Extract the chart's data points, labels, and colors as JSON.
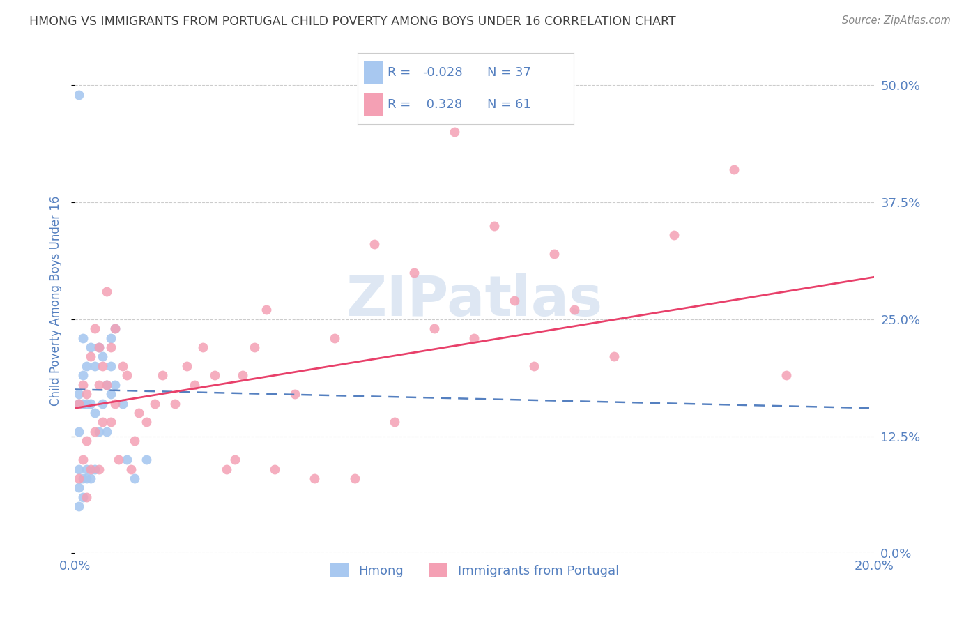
{
  "title": "HMONG VS IMMIGRANTS FROM PORTUGAL CHILD POVERTY AMONG BOYS UNDER 16 CORRELATION CHART",
  "source": "Source: ZipAtlas.com",
  "ylabel": "Child Poverty Among Boys Under 16",
  "xlim": [
    0.0,
    0.2
  ],
  "ylim": [
    0.0,
    0.54
  ],
  "yticks": [
    0.0,
    0.125,
    0.25,
    0.375,
    0.5
  ],
  "yticklabels": [
    "0.0%",
    "12.5%",
    "25.0%",
    "37.5%",
    "50.0%"
  ],
  "xticks": [
    0.0,
    0.04,
    0.08,
    0.12,
    0.16,
    0.2
  ],
  "xticklabels": [
    "0.0%",
    "",
    "",
    "",
    "",
    "20.0%"
  ],
  "hmong_color": "#A8C8F0",
  "portugal_color": "#F4A0B4",
  "hmong_line_color": "#5580C0",
  "portugal_line_color": "#E8406A",
  "background_color": "#FFFFFF",
  "grid_color": "#CCCCCC",
  "title_color": "#404040",
  "axis_label_color": "#5580C0",
  "watermark": "ZIPatlas",
  "hmong_x": [
    0.001,
    0.001,
    0.001,
    0.001,
    0.001,
    0.001,
    0.001,
    0.002,
    0.002,
    0.002,
    0.002,
    0.002,
    0.003,
    0.003,
    0.003,
    0.003,
    0.004,
    0.004,
    0.004,
    0.005,
    0.005,
    0.005,
    0.006,
    0.006,
    0.007,
    0.007,
    0.008,
    0.008,
    0.009,
    0.009,
    0.009,
    0.01,
    0.01,
    0.012,
    0.013,
    0.015,
    0.018
  ],
  "hmong_y": [
    0.05,
    0.07,
    0.09,
    0.13,
    0.16,
    0.17,
    0.49,
    0.06,
    0.08,
    0.16,
    0.19,
    0.23,
    0.08,
    0.09,
    0.16,
    0.2,
    0.08,
    0.16,
    0.22,
    0.09,
    0.15,
    0.2,
    0.13,
    0.22,
    0.16,
    0.21,
    0.13,
    0.18,
    0.17,
    0.2,
    0.23,
    0.18,
    0.24,
    0.16,
    0.1,
    0.08,
    0.1
  ],
  "portugal_x": [
    0.001,
    0.001,
    0.002,
    0.002,
    0.003,
    0.003,
    0.003,
    0.004,
    0.004,
    0.005,
    0.005,
    0.006,
    0.006,
    0.006,
    0.007,
    0.007,
    0.008,
    0.008,
    0.009,
    0.009,
    0.01,
    0.01,
    0.011,
    0.012,
    0.013,
    0.014,
    0.015,
    0.016,
    0.018,
    0.02,
    0.022,
    0.025,
    0.028,
    0.032,
    0.035,
    0.04,
    0.045,
    0.05,
    0.055,
    0.06,
    0.07,
    0.08,
    0.09,
    0.1,
    0.11,
    0.12,
    0.03,
    0.038,
    0.042,
    0.048,
    0.065,
    0.075,
    0.085,
    0.095,
    0.105,
    0.115,
    0.125,
    0.135,
    0.15,
    0.165,
    0.178
  ],
  "portugal_y": [
    0.08,
    0.16,
    0.1,
    0.18,
    0.06,
    0.12,
    0.17,
    0.09,
    0.21,
    0.13,
    0.24,
    0.09,
    0.18,
    0.22,
    0.14,
    0.2,
    0.18,
    0.28,
    0.14,
    0.22,
    0.16,
    0.24,
    0.1,
    0.2,
    0.19,
    0.09,
    0.12,
    0.15,
    0.14,
    0.16,
    0.19,
    0.16,
    0.2,
    0.22,
    0.19,
    0.1,
    0.22,
    0.09,
    0.17,
    0.08,
    0.08,
    0.14,
    0.24,
    0.23,
    0.27,
    0.32,
    0.18,
    0.09,
    0.19,
    0.26,
    0.23,
    0.33,
    0.3,
    0.45,
    0.35,
    0.2,
    0.26,
    0.21,
    0.34,
    0.41,
    0.19
  ]
}
